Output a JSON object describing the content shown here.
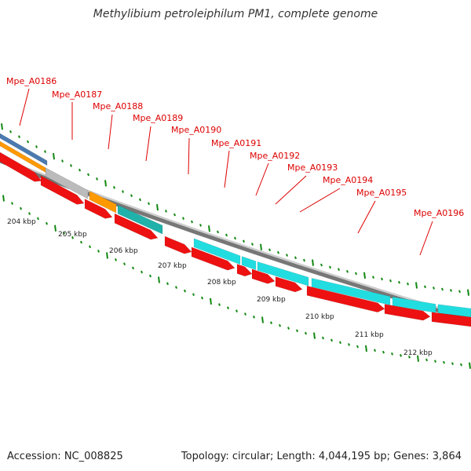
{
  "title": "Methylibium petroleiphilum PM1, complete genome",
  "footer": {
    "accession": "Accession: NC_008825",
    "summary": "Topology: circular; Length: 4,044,195 bp; Genes: 3,864"
  },
  "colors": {
    "cds_red": "#ee1111",
    "cyan": "#22dde0",
    "teal": "#20b2aa",
    "gray": "#bbbbbb",
    "orange": "#ff9900",
    "blue": "#4a7ab0",
    "label_red": "#dd0000",
    "tick_green": "#118811",
    "backbone": "#888888"
  },
  "gene_labels": [
    "Mpe_A0186",
    "Mpe_A0187",
    "Mpe_A0188",
    "Mpe_A0189",
    "Mpe_A0190",
    "Mpe_A0191",
    "Mpe_A0192",
    "Mpe_A0193",
    "Mpe_A0194",
    "Mpe_A0195",
    "Mpe_A0196"
  ],
  "kbp_ticks": [
    "204 kbp",
    "205 kbp",
    "206 kbp",
    "207 kbp",
    "208 kbp",
    "209 kbp",
    "210 kbp",
    "211 kbp",
    "212 kbp"
  ]
}
